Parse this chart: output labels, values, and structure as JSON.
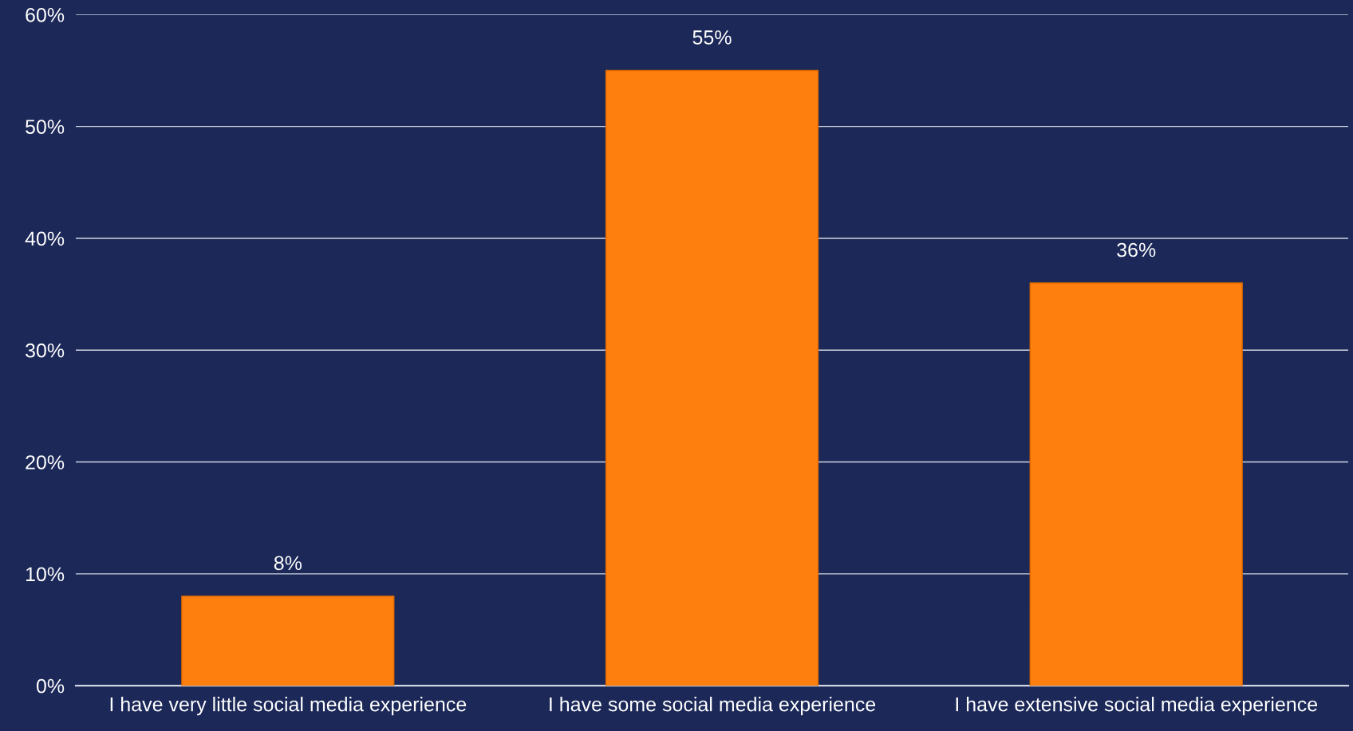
{
  "chart_data": {
    "type": "bar",
    "categories": [
      "I have very little social media experience",
      "I have some social media experience",
      "I have extensive social media experience"
    ],
    "values": [
      8,
      55,
      36
    ],
    "value_labels": [
      "8%",
      "55%",
      "36%"
    ],
    "color": "#ff7f0e",
    "ylim": [
      0,
      60
    ],
    "yticks": [
      {
        "value": 0,
        "label": "0%"
      },
      {
        "value": 10,
        "label": "10%"
      },
      {
        "value": 20,
        "label": "20%"
      },
      {
        "value": 30,
        "label": "30%"
      },
      {
        "value": 40,
        "label": "40%"
      },
      {
        "value": 50,
        "label": "50%"
      },
      {
        "value": 60,
        "label": "60%"
      }
    ],
    "grid": "y"
  }
}
